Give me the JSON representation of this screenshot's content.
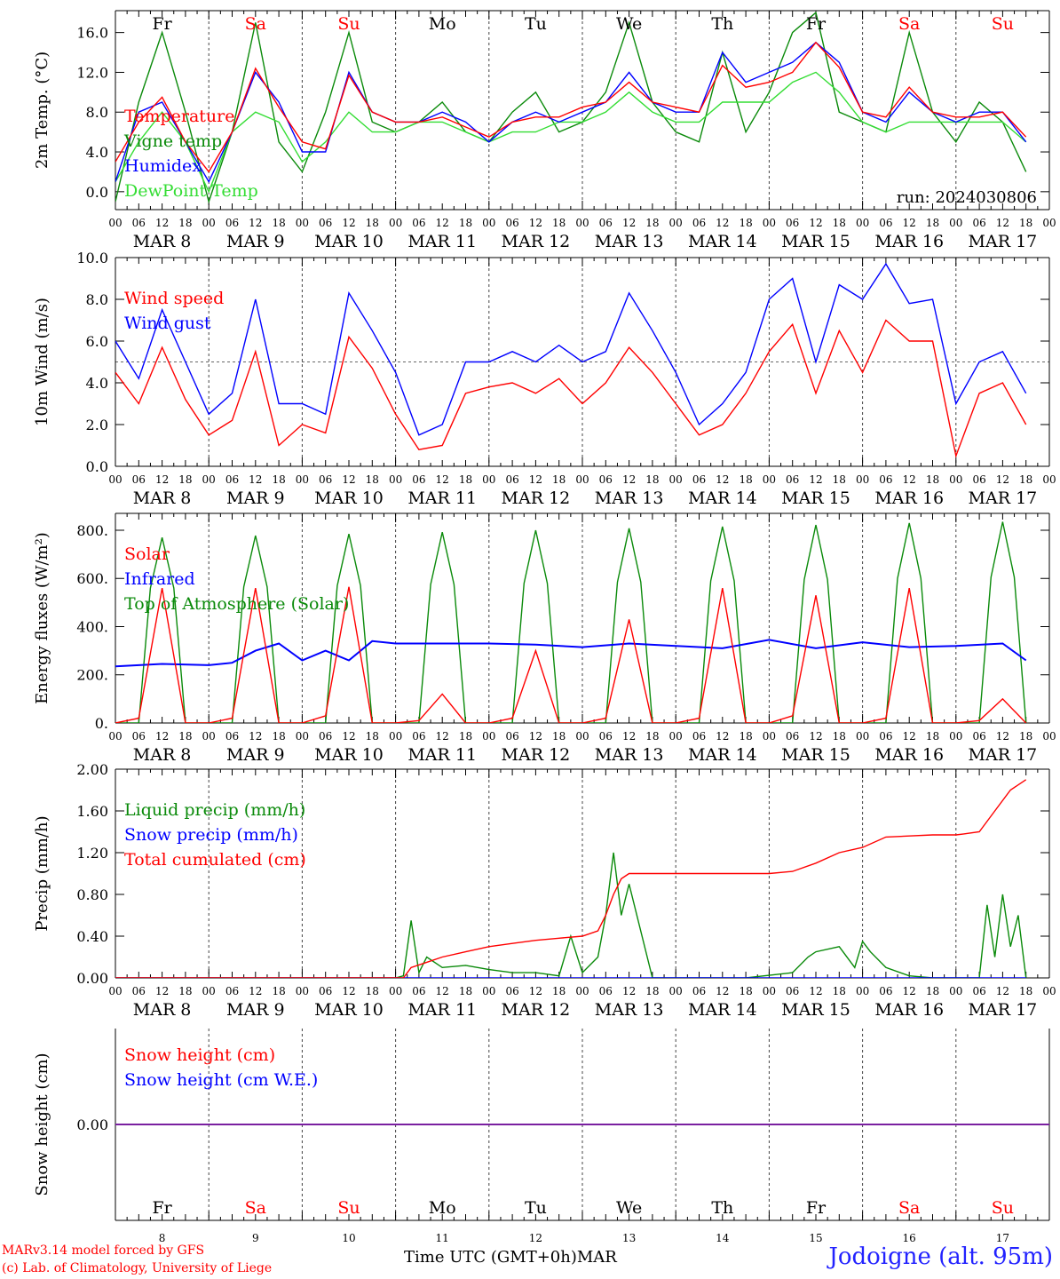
{
  "colors": {
    "red": "#ff0000",
    "green": "#0a8a0a",
    "blue": "#0000ff",
    "lightgreen": "#33dd33",
    "purple": "#7a1fa0",
    "gray": "#555555"
  },
  "axis": {
    "days": [
      "MAR  8",
      "MAR  9",
      "MAR 10",
      "MAR 11",
      "MAR 12",
      "MAR 13",
      "MAR 14",
      "MAR 15",
      "MAR 16",
      "MAR 17"
    ],
    "hour_ticks": [
      "00",
      "06",
      "12",
      "18"
    ],
    "hour_end": "00",
    "weekdays": [
      "Fr",
      "Sa",
      "Su",
      "Mo",
      "Tu",
      "We",
      "Th",
      "Fr",
      "Sa",
      "Su"
    ],
    "weekend": [
      false,
      true,
      true,
      false,
      false,
      false,
      false,
      false,
      true,
      true
    ],
    "day_numbers": [
      "8",
      "9",
      "10",
      "11",
      "12",
      "13",
      "14",
      "15",
      "16",
      "17"
    ]
  },
  "footer": {
    "model": "MARv3.14 model forced by GFS",
    "copyright": "(c) Lab. of Climatology, University of Liege",
    "time_label": "Time UTC (GMT+0h)",
    "month": "MAR",
    "station": "Jodoigne (alt. 95m)"
  },
  "chart_data": [
    {
      "id": "temp",
      "type": "line",
      "ylabel": "2m Temp. (°C)",
      "ylim": [
        -1.8,
        18.2
      ],
      "yticks": [
        0,
        4,
        8,
        12,
        16
      ],
      "ytick_labels": [
        "0.0",
        "4.0",
        "8.0",
        "12.0",
        "16.0"
      ],
      "annotation": "run: 2024030806",
      "series": [
        {
          "name": "Vigne temp",
          "color": "#0a8a0a",
          "x": [
            0,
            6,
            12,
            18,
            24,
            30,
            36,
            42,
            48,
            54,
            60,
            66,
            72,
            78,
            84,
            90,
            96,
            102,
            108,
            114,
            120,
            126,
            132,
            138,
            144,
            150,
            156,
            162,
            168,
            174,
            180,
            186,
            192,
            198,
            204,
            210,
            216,
            222,
            228,
            234
          ],
          "y": [
            -1,
            9,
            16,
            8,
            -1,
            6,
            17,
            5,
            2,
            8,
            16,
            7,
            6,
            7,
            9,
            6,
            5,
            8,
            10,
            6,
            7,
            10,
            17,
            9,
            6,
            5,
            14,
            6,
            10,
            16,
            18,
            8,
            7,
            6,
            16,
            8,
            5,
            9,
            7,
            2
          ]
        },
        {
          "name": "DewPoint Temp",
          "color": "#33dd33",
          "x": [
            0,
            6,
            12,
            18,
            24,
            30,
            36,
            42,
            48,
            54,
            60,
            66,
            72,
            78,
            84,
            90,
            96,
            102,
            108,
            114,
            120,
            126,
            132,
            138,
            144,
            150,
            156,
            162,
            168,
            174,
            180,
            186,
            192,
            198,
            204,
            210,
            216,
            222,
            228,
            234
          ],
          "y": [
            1,
            5,
            8,
            5,
            0,
            6,
            8,
            7,
            3,
            5,
            8,
            6,
            6,
            7,
            7,
            6,
            5,
            6,
            6,
            7,
            7,
            8,
            10,
            8,
            7,
            7,
            9,
            9,
            9,
            11,
            12,
            10,
            7,
            6,
            7,
            7,
            7,
            7,
            7,
            5
          ]
        },
        {
          "name": "Humidex",
          "color": "#0000ff",
          "x": [
            0,
            6,
            12,
            18,
            24,
            30,
            36,
            42,
            48,
            54,
            60,
            66,
            72,
            78,
            84,
            90,
            96,
            102,
            108,
            114,
            120,
            126,
            132,
            138,
            144,
            150,
            156,
            162,
            168,
            174,
            180,
            186,
            192,
            198,
            204,
            210,
            216,
            222,
            228,
            234
          ],
          "y": [
            1,
            8,
            9,
            5,
            1,
            6,
            12,
            9,
            4,
            4,
            12,
            8,
            7,
            7,
            8,
            7,
            5,
            7,
            8,
            7,
            8,
            9,
            12,
            9,
            8,
            8,
            14,
            11,
            12,
            13,
            15,
            13,
            8,
            7,
            10,
            8,
            7,
            8,
            8,
            5
          ]
        },
        {
          "name": "Temperature",
          "color": "#ff0000",
          "x": [
            0,
            6,
            12,
            18,
            24,
            30,
            36,
            42,
            48,
            54,
            60,
            66,
            72,
            78,
            84,
            90,
            96,
            102,
            108,
            114,
            120,
            126,
            132,
            138,
            144,
            150,
            156,
            162,
            168,
            174,
            180,
            186,
            192,
            198,
            204,
            210,
            216,
            222,
            228,
            234
          ],
          "y": [
            3,
            7,
            9.5,
            5,
            2,
            6,
            12.4,
            8.5,
            5,
            4.3,
            11.7,
            8,
            7,
            7,
            7.5,
            6.5,
            5.5,
            7,
            7.5,
            7.5,
            8.5,
            9,
            11,
            9,
            8.5,
            8,
            12.7,
            10.5,
            11,
            12,
            15,
            12.5,
            8,
            7.5,
            10.5,
            8,
            7.5,
            7.5,
            8,
            5.5
          ]
        }
      ]
    },
    {
      "id": "wind",
      "type": "line",
      "ylabel": "10m Wind (m/s)",
      "ylim": [
        0,
        10
      ],
      "yticks": [
        0,
        2,
        4,
        6,
        8,
        10
      ],
      "ytick_labels": [
        "0.0",
        "2.0",
        "4.0",
        "6.0",
        "8.0",
        "10.0"
      ],
      "reference_line": 5,
      "series": [
        {
          "name": "Wind gust",
          "color": "#0000ff",
          "x": [
            0,
            6,
            12,
            18,
            24,
            30,
            36,
            42,
            48,
            54,
            60,
            66,
            72,
            78,
            84,
            90,
            96,
            102,
            108,
            114,
            120,
            126,
            132,
            138,
            144,
            150,
            156,
            162,
            168,
            174,
            180,
            186,
            192,
            198,
            204,
            210,
            216,
            222,
            228,
            234
          ],
          "y": [
            6,
            4.2,
            7.5,
            5,
            2.5,
            3.5,
            8,
            3,
            3,
            2.5,
            8.3,
            6.5,
            4.5,
            1.5,
            2,
            5,
            5,
            5.5,
            5,
            5.8,
            5,
            5.5,
            8.3,
            6.5,
            4.5,
            2,
            3,
            4.5,
            8,
            9,
            5,
            8.7,
            8,
            9.7,
            7.8,
            8,
            3,
            5,
            5.5,
            3.5
          ]
        },
        {
          "name": "Wind speed",
          "color": "#ff0000",
          "x": [
            0,
            6,
            12,
            18,
            24,
            30,
            36,
            42,
            48,
            54,
            60,
            66,
            72,
            78,
            84,
            90,
            96,
            102,
            108,
            114,
            120,
            126,
            132,
            138,
            144,
            150,
            156,
            162,
            168,
            174,
            180,
            186,
            192,
            198,
            204,
            210,
            216,
            222,
            228,
            234
          ],
          "y": [
            4.5,
            3,
            5.7,
            3.2,
            1.5,
            2.2,
            5.5,
            1,
            2,
            1.6,
            6.2,
            4.7,
            2.5,
            0.8,
            1,
            3.5,
            3.8,
            4,
            3.5,
            4.2,
            3,
            4,
            5.7,
            4.5,
            3,
            1.5,
            2,
            3.5,
            5.5,
            6.8,
            3.5,
            6.5,
            4.5,
            7,
            6,
            6,
            0.5,
            3.5,
            4,
            2
          ]
        }
      ]
    },
    {
      "id": "energy",
      "type": "line",
      "ylabel": "Energy fluxes (W/m²)",
      "ylim": [
        0,
        870
      ],
      "yticks": [
        0,
        200,
        400,
        600,
        800
      ],
      "ytick_labels": [
        "0.",
        "200.",
        "400.",
        "600.",
        "800."
      ],
      "series": [
        {
          "name": "Top of Atmosphere (Solar)",
          "color": "#0a8a0a",
          "x": [
            0,
            6,
            9,
            12,
            15,
            18,
            24,
            30,
            33,
            36,
            39,
            42,
            48,
            54,
            57,
            60,
            63,
            66,
            72,
            78,
            81,
            84,
            87,
            90,
            96,
            102,
            105,
            108,
            111,
            114,
            120,
            126,
            129,
            132,
            135,
            138,
            144,
            150,
            153,
            156,
            159,
            162,
            168,
            174,
            177,
            180,
            183,
            186,
            192,
            198,
            201,
            204,
            207,
            210,
            216,
            222,
            225,
            228,
            231,
            234
          ],
          "y": [
            0,
            0,
            560,
            770,
            560,
            0,
            0,
            0,
            565,
            778,
            565,
            0,
            0,
            0,
            570,
            785,
            570,
            0,
            0,
            0,
            575,
            792,
            575,
            0,
            0,
            0,
            580,
            800,
            580,
            0,
            0,
            0,
            585,
            808,
            585,
            0,
            0,
            0,
            590,
            815,
            590,
            0,
            0,
            0,
            595,
            822,
            595,
            0,
            0,
            0,
            600,
            830,
            600,
            0,
            0,
            0,
            605,
            835,
            605,
            0
          ]
        },
        {
          "name": "Infrared",
          "color": "#0000ff",
          "x": [
            0,
            12,
            24,
            30,
            36,
            42,
            48,
            54,
            60,
            66,
            72,
            84,
            96,
            108,
            120,
            132,
            144,
            156,
            168,
            180,
            192,
            204,
            216,
            228,
            234
          ],
          "y": [
            235,
            245,
            240,
            250,
            300,
            330,
            260,
            300,
            260,
            340,
            330,
            330,
            330,
            325,
            315,
            330,
            320,
            310,
            345,
            310,
            335,
            315,
            320,
            330,
            260
          ]
        },
        {
          "name": "Solar",
          "color": "#ff0000",
          "x": [
            0,
            6,
            12,
            18,
            24,
            30,
            36,
            42,
            48,
            54,
            60,
            66,
            72,
            78,
            84,
            90,
            96,
            102,
            108,
            114,
            120,
            126,
            132,
            138,
            144,
            150,
            156,
            162,
            168,
            174,
            180,
            186,
            192,
            198,
            204,
            210,
            216,
            222,
            228,
            234
          ],
          "y": [
            0,
            20,
            560,
            0,
            0,
            20,
            560,
            0,
            0,
            30,
            565,
            0,
            0,
            10,
            120,
            0,
            0,
            20,
            300,
            0,
            0,
            20,
            430,
            0,
            0,
            20,
            560,
            0,
            0,
            30,
            530,
            0,
            0,
            20,
            560,
            0,
            0,
            10,
            100,
            0
          ]
        }
      ]
    },
    {
      "id": "precip",
      "type": "line",
      "ylabel": "Precip (mm/h)",
      "ylim": [
        0,
        2
      ],
      "yticks": [
        0,
        0.4,
        0.8,
        1.2,
        1.6,
        2.0
      ],
      "ytick_labels": [
        "0.00",
        "0.40",
        "0.80",
        "1.20",
        "1.60",
        "2.00"
      ],
      "series": [
        {
          "name": "Liquid precip (mm/h)",
          "color": "#0a8a0a",
          "x": [
            0,
            72,
            74,
            76,
            78,
            80,
            84,
            90,
            96,
            102,
            108,
            114,
            117,
            120,
            124,
            126,
            128,
            130,
            132,
            138,
            156,
            162,
            174,
            178,
            180,
            186,
            190,
            192,
            194,
            198,
            204,
            210,
            216,
            222,
            224,
            226,
            228,
            230,
            232,
            234
          ],
          "y": [
            0,
            0,
            0.02,
            0.55,
            0.05,
            0.2,
            0.1,
            0.12,
            0.08,
            0.05,
            0.05,
            0.02,
            0.4,
            0.05,
            0.2,
            0.6,
            1.2,
            0.6,
            0.9,
            0,
            0,
            0,
            0.05,
            0.2,
            0.25,
            0.3,
            0.1,
            0.35,
            0.25,
            0.1,
            0.02,
            0,
            0,
            0,
            0.7,
            0.2,
            0.8,
            0.3,
            0.6,
            0
          ]
        },
        {
          "name": "Snow precip (mm/h)",
          "color": "#0000ff",
          "x": [
            0,
            234
          ],
          "y": [
            0,
            0
          ]
        },
        {
          "name": "Total cumulated (cm)",
          "color": "#ff0000",
          "x": [
            0,
            74,
            76,
            80,
            84,
            90,
            96,
            102,
            108,
            114,
            120,
            124,
            126,
            128,
            130,
            132,
            134,
            138,
            144,
            156,
            168,
            174,
            180,
            186,
            192,
            198,
            204,
            210,
            216,
            218,
            222,
            226,
            230,
            234
          ],
          "y": [
            0,
            0,
            0.1,
            0.15,
            0.2,
            0.25,
            0.3,
            0.33,
            0.36,
            0.38,
            0.4,
            0.45,
            0.6,
            0.8,
            0.95,
            1.0,
            1.0,
            1.0,
            1.0,
            1.0,
            1.0,
            1.02,
            1.1,
            1.2,
            1.25,
            1.35,
            1.36,
            1.37,
            1.37,
            1.38,
            1.4,
            1.6,
            1.8,
            1.9
          ]
        }
      ]
    },
    {
      "id": "snow",
      "type": "line",
      "ylabel": "Snow height (cm)",
      "ylim": [
        -1,
        1
      ],
      "yticks": [
        0
      ],
      "ytick_labels": [
        "0.00"
      ],
      "series": [
        {
          "name": "Snow height (cm)",
          "color": "#ff0000",
          "x": [
            0,
            240
          ],
          "y": [
            0,
            0
          ]
        },
        {
          "name": "Snow height (cm W.E.)",
          "color": "#0000ff",
          "x": [
            0,
            240
          ],
          "y": [
            0,
            0
          ]
        }
      ]
    }
  ]
}
